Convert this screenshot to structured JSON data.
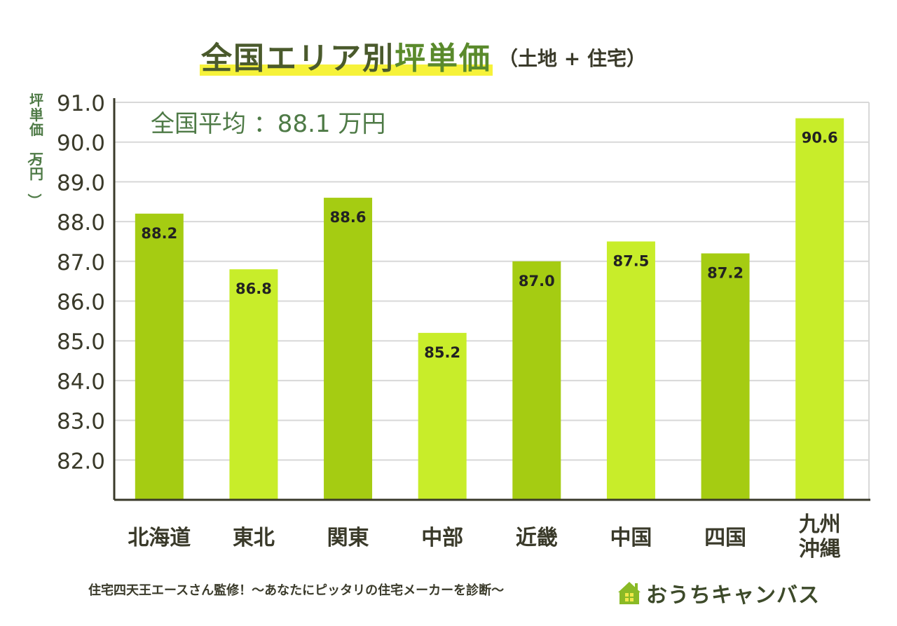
{
  "title": {
    "prefix": "全国エリア別",
    "main": "坪単価",
    "sub": "（土地 + 住宅）"
  },
  "footer": {
    "text": "住宅四天王エースさん監修！〜あなたにピッタリの住宅メーカーを診断〜",
    "logo_text": "おうちキャンバス",
    "logo_icon": "house-icon"
  },
  "colors": {
    "bar_dark": "#a5cc12",
    "bar_light": "#c8ed2a",
    "axis": "#3a3a2a",
    "grid": "#d8d8d8",
    "average_text": "#4e7a46",
    "ylabel": "#4e7a46",
    "logo_house_dark": "#8aba26",
    "logo_house_light": "#f2e84a"
  },
  "chart_data": {
    "type": "bar",
    "title": "全国エリア別坪単価（土地 + 住宅）",
    "ylabel": "坪単価（万円）",
    "xlabel": "",
    "categories": [
      "北海道",
      "東北",
      "関東",
      "中部",
      "近畿",
      "中国",
      "四国",
      "九州沖縄"
    ],
    "category_lines": [
      [
        "北海道"
      ],
      [
        "東北"
      ],
      [
        "関東"
      ],
      [
        "中部"
      ],
      [
        "近畿"
      ],
      [
        "中国"
      ],
      [
        "四国"
      ],
      [
        "九州",
        "沖縄"
      ]
    ],
    "values": [
      88.2,
      86.8,
      88.6,
      85.2,
      87.0,
      87.5,
      87.2,
      90.6
    ],
    "value_labels": [
      "88.2",
      "86.8",
      "88.6",
      "85.2",
      "87.0",
      "87.5",
      "87.2",
      "90.6"
    ],
    "bar_shades": [
      "dark",
      "light",
      "dark",
      "light",
      "dark",
      "light",
      "dark",
      "light"
    ],
    "yticks": [
      82.0,
      83.0,
      84.0,
      85.0,
      86.0,
      87.0,
      88.0,
      89.0,
      90.0,
      91.0
    ],
    "ytick_labels": [
      "82.0",
      "83.0",
      "84.0",
      "85.0",
      "86.0",
      "87.0",
      "88.0",
      "89.0",
      "90.0",
      "91.0"
    ],
    "ylim": [
      81.0,
      91.0
    ],
    "grid": true,
    "annotation": "全国平均 ：88.1 万円"
  }
}
